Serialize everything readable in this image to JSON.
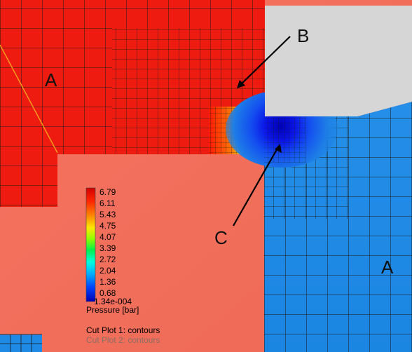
{
  "region_labels": {
    "a_left": "A",
    "a_right": "A",
    "b": "B",
    "c": "C"
  },
  "legend": {
    "ticks": [
      "6.79",
      "6.11",
      "5.43",
      "4.75",
      "4.07",
      "3.39",
      "2.72",
      "2.04",
      "1.36",
      "0.68",
      "1.34e-004"
    ],
    "title": "Pressure [bar]",
    "max_value": 6.79,
    "min_value": 0.000134,
    "colormap": [
      "#ff0000",
      "#ff5a00",
      "#ffb400",
      "#e6ff00",
      "#78ff00",
      "#00ff3c",
      "#00ffd2",
      "#00c8ff",
      "#0064ff",
      "#0014ff",
      "#0000c8"
    ]
  },
  "cut_plots": {
    "plot1": "Cut Plot 1: contours",
    "plot2": "Cut Plot 2: contours"
  },
  "colors": {
    "high_pressure_red": "#ee1c10",
    "mid_pressure_salmon": "#f2705f",
    "low_pressure_blue": "#1e8ae6",
    "solid_grey": "#d6d6d6",
    "mesh_line": "#1a1a1a",
    "arrow": "#000000"
  }
}
